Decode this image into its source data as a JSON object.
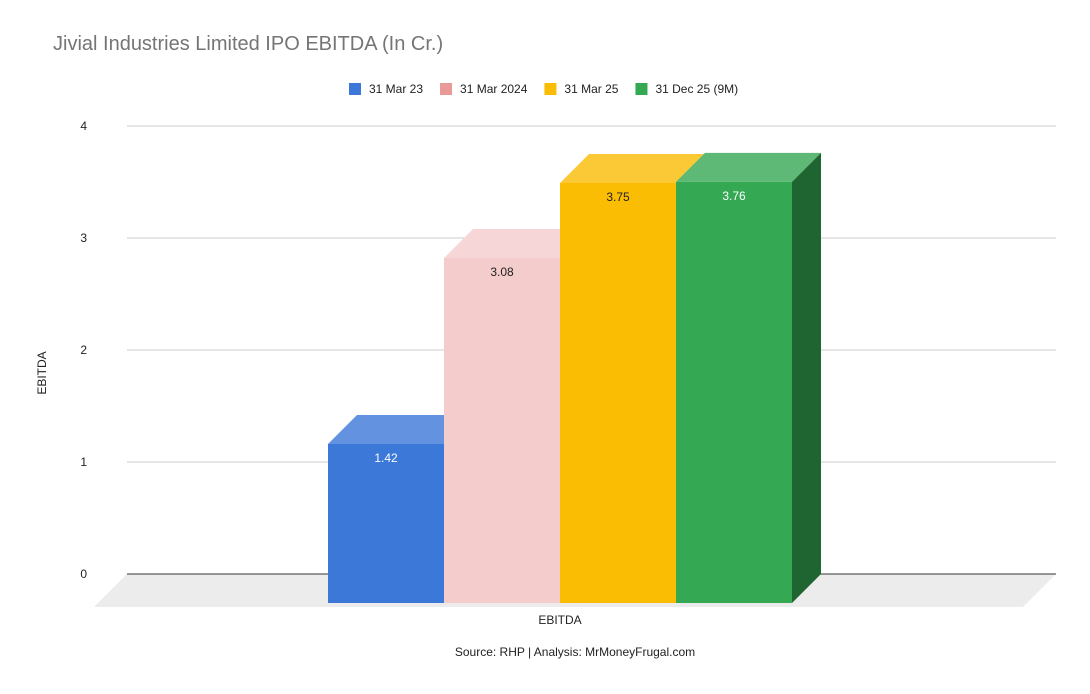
{
  "chart_data": {
    "type": "bar",
    "title": "Jivial Industries Limited IPO EBITDA (In Cr.)",
    "xlabel": "EBITDA",
    "ylabel": "EBITDA",
    "categories": [
      "EBITDA"
    ],
    "ylim": [
      0,
      4
    ],
    "yticks": [
      "0",
      "1",
      "2",
      "3",
      "4"
    ],
    "grid": true,
    "legend_position": "top",
    "three_d": true,
    "series": [
      {
        "name": "31 Mar 23",
        "value": 1.42,
        "label": "1.42",
        "color": "#3c78d8",
        "label_color": "#ffffff"
      },
      {
        "name": "31 Mar 2024",
        "value": 3.08,
        "label": "3.08",
        "color": "#f4cccc",
        "label_color": "#222222"
      },
      {
        "name": "31 Mar 25",
        "value": 3.75,
        "label": "3.75",
        "color": "#fbbc04",
        "label_color": "#222222"
      },
      {
        "name": "31 Dec 25 (9M)",
        "value": 3.76,
        "label": "3.76",
        "color": "#34a853",
        "label_color": "#ffffff"
      }
    ],
    "legend_swatch_colors": [
      "#3c78d8",
      "#ea9999",
      "#fbbc04",
      "#34a853"
    ],
    "source_note": "Source: RHP | Analysis: MrMoneyFrugal.com"
  }
}
